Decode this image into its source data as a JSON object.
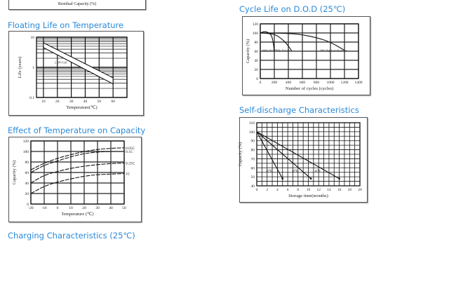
{
  "residual": {
    "xlabel": "Residual Capacity (%)"
  },
  "sections": {
    "floating": "Floating Life on Temperature",
    "cycle": "Cycle Life on D.O.D (25℃)",
    "temp": "Effect of Temperature on Capacity",
    "self": "Self-discharge Characteristics",
    "charging": "Charging Characteristics (25℃)"
  },
  "chart_data": [
    {
      "id": "floating",
      "type": "area",
      "xlabel": "Temperature(℃)",
      "ylabel": "Life (years)",
      "xlim": [
        5,
        70
      ],
      "ylim": [
        0.1,
        10
      ],
      "yscale": "log",
      "xticks": [
        10,
        20,
        30,
        40,
        50,
        60
      ],
      "yticks": [
        0.1,
        1,
        10
      ],
      "annotation": "2.30V/Cell",
      "band": {
        "x": [
          10,
          60
        ],
        "upper": [
          6.5,
          0.45
        ],
        "lower": [
          4.5,
          0.28
        ]
      }
    },
    {
      "id": "cycle",
      "type": "line",
      "xlabel": "Number of cycles (cycles)",
      "ylabel": "Capacity (%)",
      "xlim": [
        0,
        1400
      ],
      "ylim": [
        0,
        120
      ],
      "xticks": [
        0,
        200,
        400,
        600,
        800,
        1000,
        1200,
        1400
      ],
      "yticks": [
        0,
        20,
        40,
        60,
        80,
        100,
        120
      ],
      "series": [
        {
          "name": "100% D.O.D",
          "x": [
            0,
            70,
            150,
            180,
            200
          ],
          "y": [
            100,
            104,
            98,
            85,
            60
          ]
        },
        {
          "name": "50% D.O.D",
          "x": [
            0,
            200,
            300,
            380,
            450
          ],
          "y": [
            100,
            98,
            88,
            76,
            60
          ]
        },
        {
          "name": "30% Depth of discharge",
          "x": [
            0,
            500,
            800,
            1000,
            1200
          ],
          "y": [
            100,
            99,
            90,
            80,
            62
          ]
        }
      ]
    },
    {
      "id": "temp",
      "type": "line",
      "xlabel": "Temperature (℃)",
      "ylabel": "Capacity (%)",
      "xlim": [
        -20,
        50
      ],
      "ylim": [
        0,
        120
      ],
      "xticks": [
        -20,
        -10,
        0,
        10,
        20,
        30,
        40,
        50
      ],
      "yticks": [
        0,
        20,
        40,
        60,
        80,
        100,
        120
      ],
      "x": [
        -20,
        -10,
        0,
        10,
        20,
        30,
        40,
        50
      ],
      "series": [
        {
          "name": "0.05C",
          "y": [
            65,
            78,
            87,
            94,
            100,
            104,
            106,
            107
          ]
        },
        {
          "name": "0.1C",
          "y": [
            60,
            74,
            82,
            90,
            96,
            99,
            100,
            100
          ]
        },
        {
          "name": "0.25C",
          "y": [
            40,
            55,
            62,
            68,
            72,
            75,
            77,
            78
          ]
        },
        {
          "name": "1C",
          "y": [
            20,
            34,
            42,
            48,
            53,
            56,
            57,
            58
          ]
        }
      ]
    },
    {
      "id": "self",
      "type": "line",
      "xlabel": "Storage time(months)",
      "ylabel": "Capacity (%)",
      "xlim": [
        0,
        20
      ],
      "ylim": [
        40,
        110
      ],
      "xticks": [
        0,
        2,
        4,
        6,
        8,
        10,
        12,
        14,
        16,
        18,
        20
      ],
      "yticks": [
        40,
        50,
        60,
        70,
        80,
        90,
        100,
        110
      ],
      "series": [
        {
          "name": "40℃",
          "x": [
            0,
            5
          ],
          "y": [
            100,
            48
          ]
        },
        {
          "name": "30℃",
          "x": [
            0,
            10.5
          ],
          "y": [
            100,
            48
          ]
        },
        {
          "name": "20℃",
          "x": [
            0,
            16
          ],
          "y": [
            100,
            48
          ]
        }
      ]
    }
  ]
}
